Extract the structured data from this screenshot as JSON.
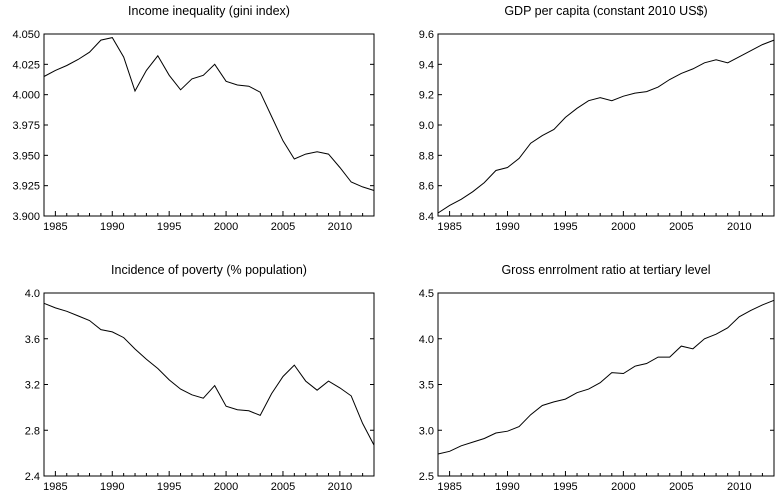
{
  "chart_data": [
    {
      "type": "line",
      "title": "Income inequality (gini index)",
      "xlabel": "",
      "ylabel": "",
      "xlim": [
        1984,
        2013
      ],
      "ylim": [
        3.9,
        4.05
      ],
      "x": [
        1984,
        1985,
        1986,
        1987,
        1988,
        1989,
        1990,
        1991,
        1992,
        1993,
        1994,
        1995,
        1996,
        1997,
        1998,
        1999,
        2000,
        2001,
        2002,
        2003,
        2004,
        2005,
        2006,
        2007,
        2008,
        2009,
        2010,
        2011,
        2012,
        2013
      ],
      "series": [
        {
          "values": [
            4.015,
            4.02,
            4.024,
            4.029,
            4.035,
            4.045,
            4.047,
            4.031,
            4.003,
            4.02,
            4.032,
            4.016,
            4.004,
            4.013,
            4.016,
            4.025,
            4.011,
            4.008,
            4.007,
            4.002,
            3.982,
            3.962,
            3.947,
            3.951,
            3.953,
            3.951,
            3.94,
            3.928,
            3.924,
            3.921
          ]
        }
      ],
      "yticks": [
        "3.900",
        "3.925",
        "3.950",
        "3.975",
        "4.000",
        "4.025",
        "4.050"
      ],
      "xticks": [
        "1985",
        "1990",
        "1995",
        "2000",
        "2005",
        "2010"
      ],
      "grid": false
    },
    {
      "type": "line",
      "title": "GDP per capita (constant 2010 US$)",
      "xlabel": "",
      "ylabel": "",
      "xlim": [
        1984,
        2013
      ],
      "ylim": [
        8.4,
        9.6
      ],
      "x": [
        1984,
        1985,
        1986,
        1987,
        1988,
        1989,
        1990,
        1991,
        1992,
        1993,
        1994,
        1995,
        1996,
        1997,
        1998,
        1999,
        2000,
        2001,
        2002,
        2003,
        2004,
        2005,
        2006,
        2007,
        2008,
        2009,
        2010,
        2011,
        2012,
        2013
      ],
      "series": [
        {
          "values": [
            8.42,
            8.47,
            8.51,
            8.56,
            8.62,
            8.7,
            8.72,
            8.78,
            8.88,
            8.93,
            8.97,
            9.05,
            9.11,
            9.16,
            9.18,
            9.16,
            9.19,
            9.21,
            9.22,
            9.25,
            9.3,
            9.34,
            9.37,
            9.41,
            9.43,
            9.41,
            9.45,
            9.49,
            9.53,
            9.56
          ]
        }
      ],
      "yticks": [
        "8.4",
        "8.6",
        "8.8",
        "9.0",
        "9.2",
        "9.4",
        "9.6"
      ],
      "xticks": [
        "1985",
        "1990",
        "1995",
        "2000",
        "2005",
        "2010"
      ],
      "grid": false
    },
    {
      "type": "line",
      "title": "Incidence of poverty (% population)",
      "xlabel": "",
      "ylabel": "",
      "xlim": [
        1984,
        2013
      ],
      "ylim": [
        2.4,
        4.0
      ],
      "x": [
        1984,
        1985,
        1986,
        1987,
        1988,
        1989,
        1990,
        1991,
        1992,
        1993,
        1994,
        1995,
        1996,
        1997,
        1998,
        1999,
        2000,
        2001,
        2002,
        2003,
        2004,
        2005,
        2006,
        2007,
        2008,
        2009,
        2010,
        2011,
        2012,
        2013
      ],
      "series": [
        {
          "values": [
            3.91,
            3.87,
            3.84,
            3.8,
            3.76,
            3.68,
            3.66,
            3.61,
            3.51,
            3.42,
            3.34,
            3.24,
            3.16,
            3.11,
            3.08,
            3.19,
            3.01,
            2.98,
            2.97,
            2.93,
            3.12,
            3.27,
            3.37,
            3.23,
            3.15,
            3.23,
            3.17,
            3.1,
            2.86,
            2.67
          ]
        }
      ],
      "yticks": [
        "2.4",
        "2.8",
        "3.2",
        "3.6",
        "4.0"
      ],
      "xticks": [
        "1985",
        "1990",
        "1995",
        "2000",
        "2005",
        "2010"
      ],
      "grid": false
    },
    {
      "type": "line",
      "title": "Gross enrrolment ratio at tertiary level",
      "xlabel": "",
      "ylabel": "",
      "xlim": [
        1984,
        2013
      ],
      "ylim": [
        2.5,
        4.5
      ],
      "x": [
        1984,
        1985,
        1986,
        1987,
        1988,
        1989,
        1990,
        1991,
        1992,
        1993,
        1994,
        1995,
        1996,
        1997,
        1998,
        1999,
        2000,
        2001,
        2002,
        2003,
        2004,
        2005,
        2006,
        2007,
        2008,
        2009,
        2010,
        2011,
        2012,
        2013
      ],
      "series": [
        {
          "values": [
            2.74,
            2.77,
            2.83,
            2.87,
            2.91,
            2.97,
            2.99,
            3.04,
            3.17,
            3.27,
            3.31,
            3.34,
            3.41,
            3.45,
            3.52,
            3.63,
            3.62,
            3.7,
            3.73,
            3.8,
            3.8,
            3.92,
            3.89,
            4.0,
            4.05,
            4.12,
            4.24,
            4.31,
            4.37,
            4.42
          ]
        }
      ],
      "yticks": [
        "2.5",
        "3.0",
        "3.5",
        "4.0",
        "4.5"
      ],
      "xticks": [
        "1985",
        "1990",
        "1995",
        "2000",
        "2005",
        "2010"
      ],
      "grid": false
    }
  ]
}
